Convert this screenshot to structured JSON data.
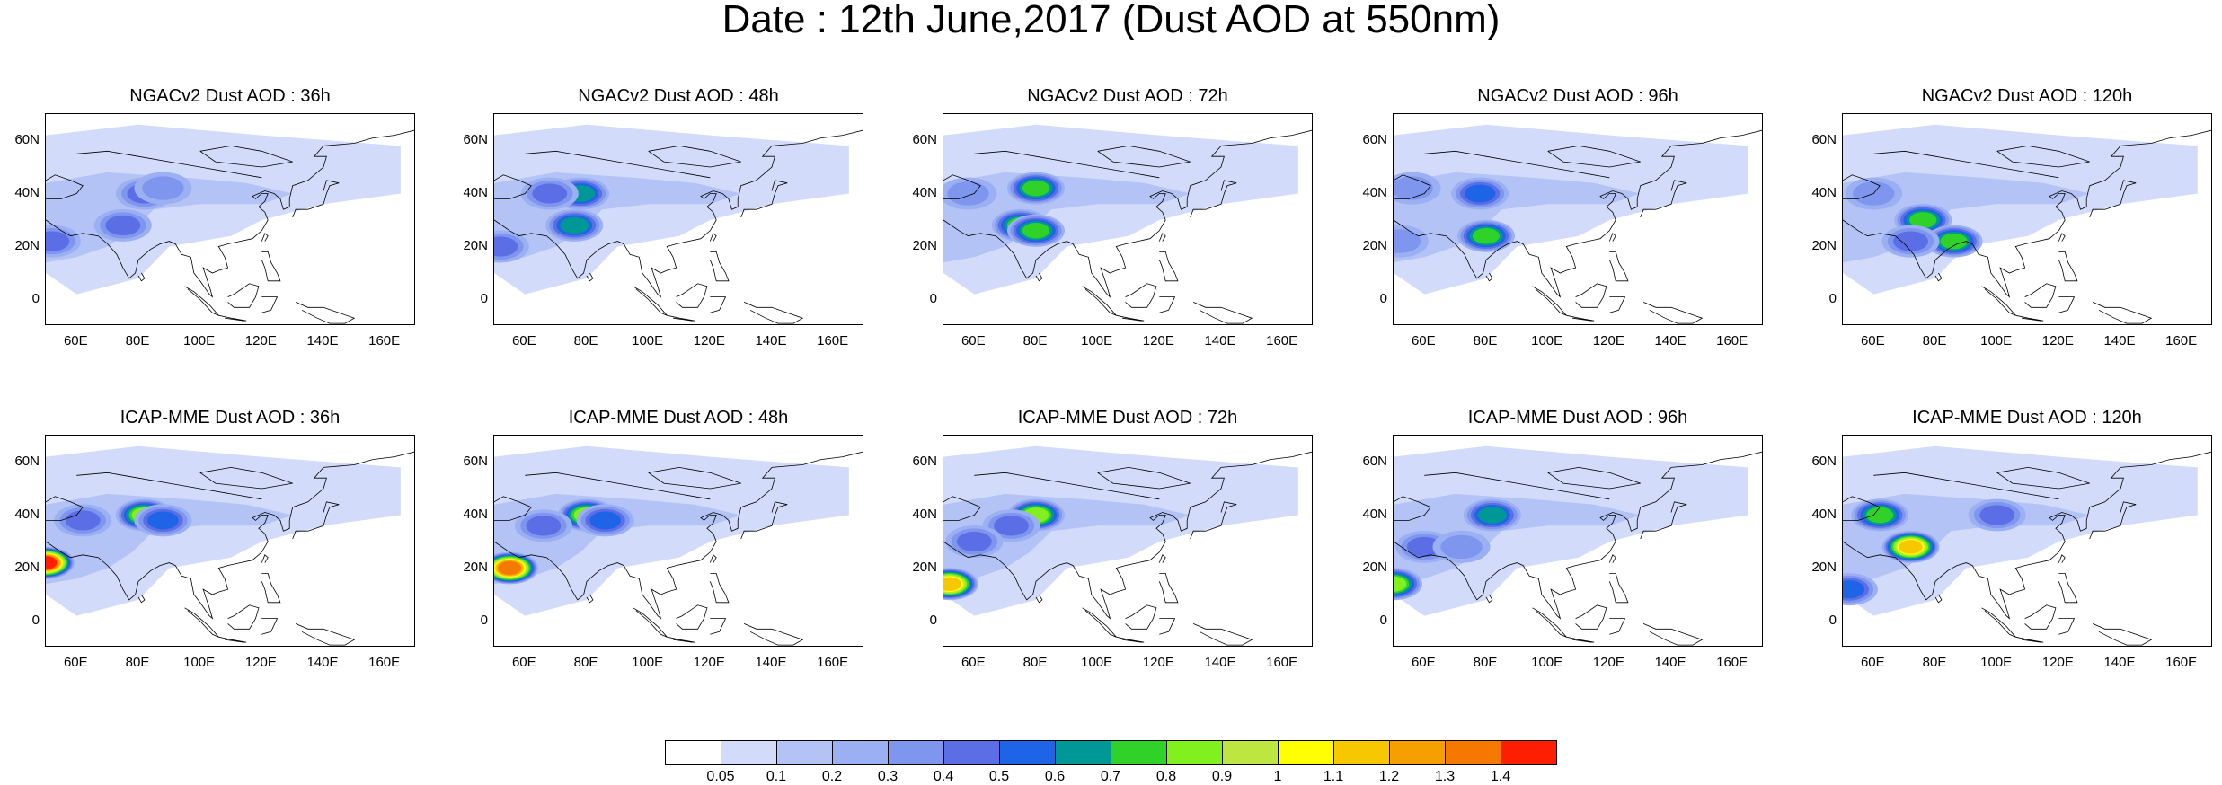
{
  "title": "Date : 12th June,2017 (Dust AOD at 550nm)",
  "map": {
    "x_ticks": [
      "60E",
      "80E",
      "100E",
      "120E",
      "140E",
      "160E"
    ],
    "y_ticks": [
      "60N",
      "40N",
      "20N",
      "0"
    ],
    "lon_range": [
      50,
      170
    ],
    "lat_range": [
      -10,
      70
    ]
  },
  "panels": [
    {
      "title": "NGACv2 Dust AOD : 36h",
      "model": "NGACv2",
      "lead": "36h",
      "hot": [
        [
          82,
          40,
          0.45
        ],
        [
          88,
          42,
          0.35
        ],
        [
          52,
          22,
          0.45
        ],
        [
          75,
          28,
          0.4
        ]
      ]
    },
    {
      "title": "NGACv2 Dust AOD : 48h",
      "model": "NGACv2",
      "lead": "48h",
      "hot": [
        [
          78,
          40,
          0.6
        ],
        [
          76,
          28,
          0.65
        ],
        [
          52,
          20,
          0.45
        ],
        [
          68,
          40,
          0.4
        ]
      ]
    },
    {
      "title": "NGACv2 Dust AOD : 72h",
      "model": "NGACv2",
      "lead": "72h",
      "hot": [
        [
          80,
          42,
          0.7
        ],
        [
          75,
          28,
          0.7
        ],
        [
          80,
          26,
          0.75
        ],
        [
          58,
          40,
          0.35
        ]
      ]
    },
    {
      "title": "NGACv2 Dust AOD : 96h",
      "model": "NGACv2",
      "lead": "96h",
      "hot": [
        [
          80,
          24,
          0.75
        ],
        [
          78,
          40,
          0.5
        ],
        [
          56,
          42,
          0.35
        ],
        [
          52,
          22,
          0.35
        ]
      ]
    },
    {
      "title": "NGACv2 Dust AOD : 120h",
      "model": "NGACv2",
      "lead": "120h",
      "hot": [
        [
          76,
          30,
          0.75
        ],
        [
          86,
          22,
          0.7
        ],
        [
          60,
          40,
          0.35
        ],
        [
          72,
          22,
          0.45
        ]
      ]
    },
    {
      "title": "ICAP-MME Dust AOD : 36h",
      "model": "ICAP-MME",
      "lead": "36h",
      "hot": [
        [
          50,
          22,
          1.4
        ],
        [
          82,
          40,
          0.8
        ],
        [
          88,
          38,
          0.5
        ],
        [
          62,
          38,
          0.45
        ]
      ]
    },
    {
      "title": "ICAP-MME Dust AOD : 48h",
      "model": "ICAP-MME",
      "lead": "48h",
      "hot": [
        [
          55,
          20,
          1.35
        ],
        [
          80,
          40,
          0.85
        ],
        [
          86,
          38,
          0.5
        ],
        [
          66,
          36,
          0.4
        ]
      ]
    },
    {
      "title": "ICAP-MME Dust AOD : 72h",
      "model": "ICAP-MME",
      "lead": "72h",
      "hot": [
        [
          52,
          14,
          1.1
        ],
        [
          80,
          40,
          0.8
        ],
        [
          72,
          36,
          0.45
        ],
        [
          60,
          30,
          0.4
        ]
      ]
    },
    {
      "title": "ICAP-MME Dust AOD : 96h",
      "model": "ICAP-MME",
      "lead": "96h",
      "hot": [
        [
          50,
          14,
          0.8
        ],
        [
          82,
          40,
          0.6
        ],
        [
          60,
          28,
          0.45
        ],
        [
          72,
          28,
          0.35
        ]
      ]
    },
    {
      "title": "ICAP-MME Dust AOD : 120h",
      "model": "ICAP-MME",
      "lead": "120h",
      "hot": [
        [
          72,
          28,
          1.1
        ],
        [
          62,
          40,
          0.75
        ],
        [
          52,
          12,
          0.55
        ],
        [
          100,
          40,
          0.4
        ]
      ]
    }
  ],
  "colorbar": {
    "labels": [
      "0.05",
      "0.1",
      "0.2",
      "0.3",
      "0.4",
      "0.5",
      "0.6",
      "0.7",
      "0.8",
      "0.9",
      "1",
      "1.1",
      "1.2",
      "1.3",
      "1.4"
    ],
    "colors": [
      "#ffffff",
      "#d2dcfa",
      "#b4c3f5",
      "#9bb0f2",
      "#7f96ee",
      "#5c6ee5",
      "#1e64e6",
      "#009896",
      "#30d22a",
      "#82f01e",
      "#bee641",
      "#ffff00",
      "#f5c800",
      "#f5a000",
      "#f57800",
      "#ff1e00"
    ]
  }
}
